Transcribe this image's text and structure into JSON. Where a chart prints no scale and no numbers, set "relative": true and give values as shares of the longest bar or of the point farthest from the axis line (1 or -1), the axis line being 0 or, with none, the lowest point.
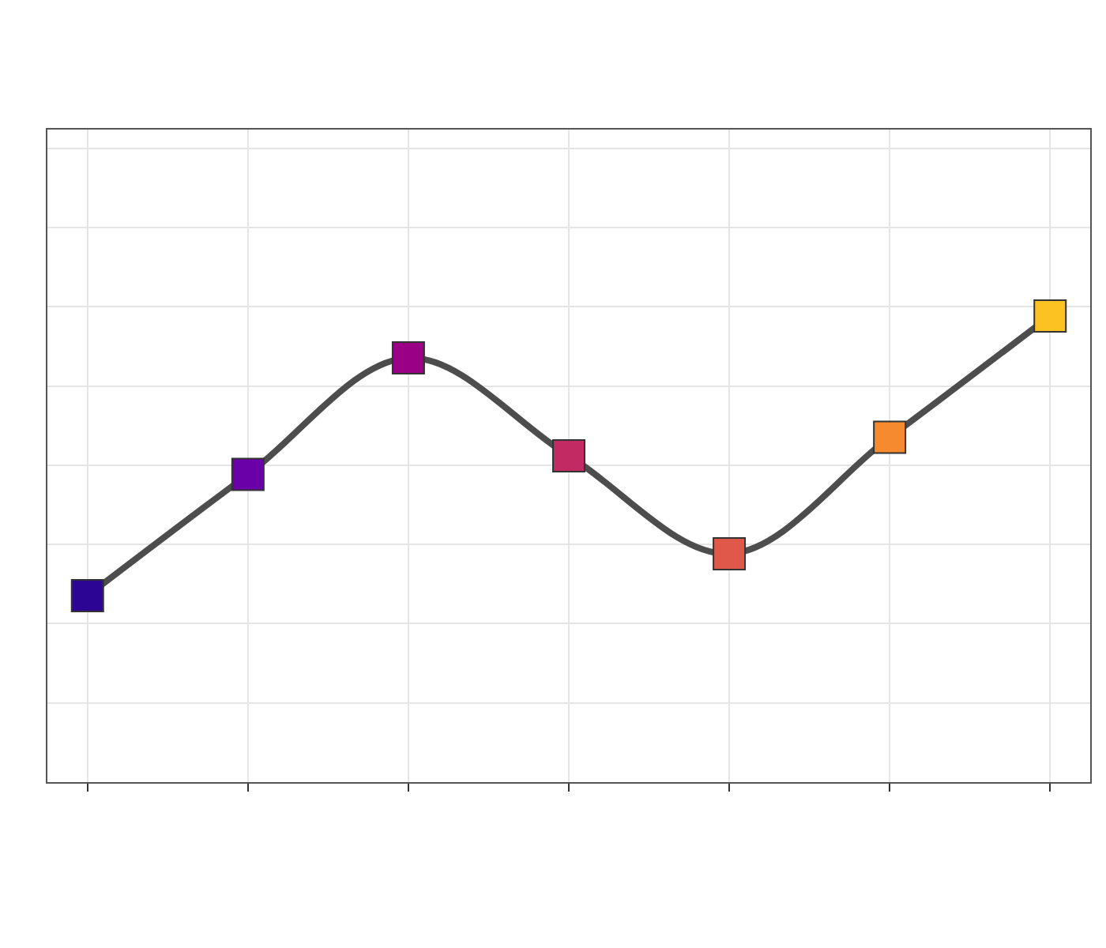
{
  "chart_data": {
    "type": "line",
    "relative": true,
    "grid": true,
    "categories": [
      null,
      null,
      null,
      null,
      null,
      null,
      null
    ],
    "series": [
      {
        "color": "#4d4d4d",
        "marker": "square",
        "line_style": "solid",
        "colors": [
          "#2d0594",
          "#6a00a8",
          "#990085",
          "#c12a62",
          "#e0584a",
          "#f58a2f",
          "#fcc222"
        ],
        "values": [
          0.4,
          0.66,
          0.91,
          0.7,
          0.49,
          0.74,
          1.0
        ]
      }
    ]
  }
}
